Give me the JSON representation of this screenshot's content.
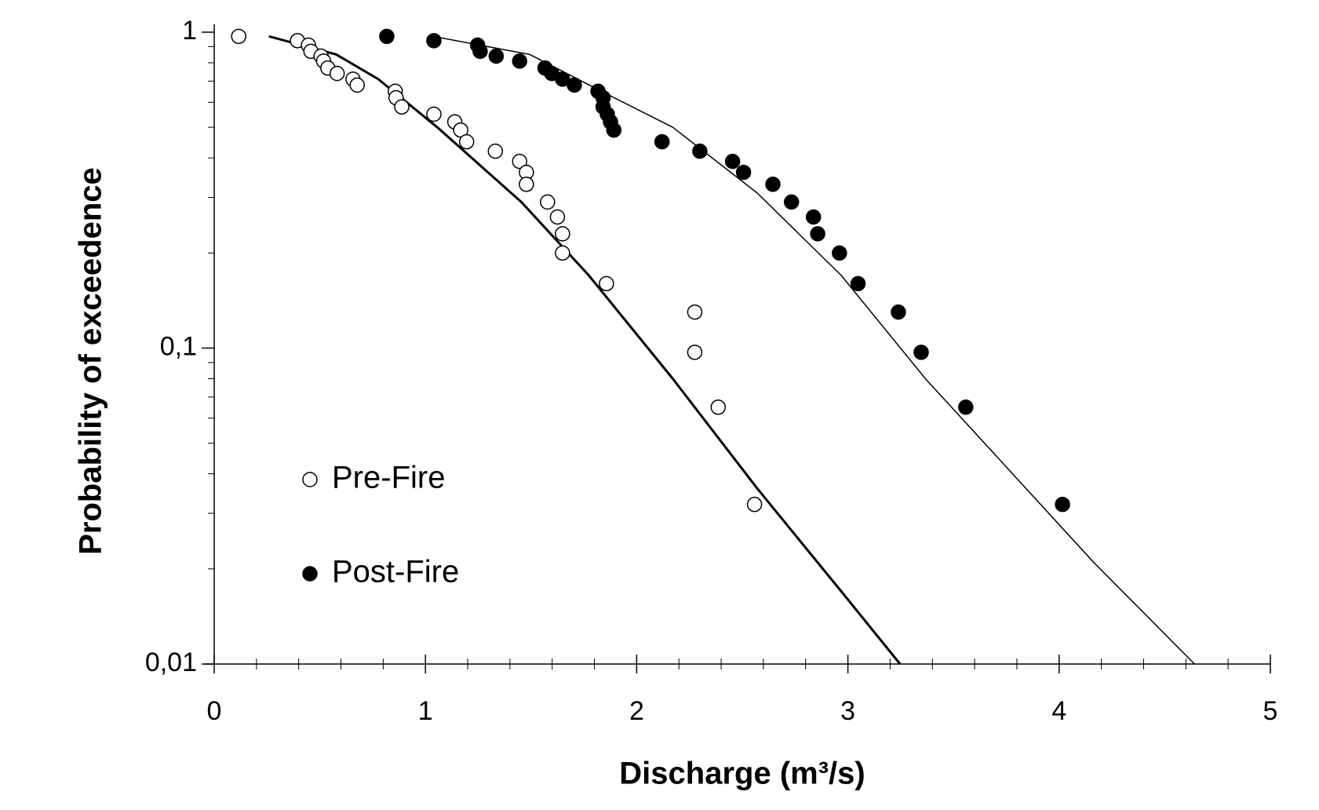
{
  "chart_data": {
    "type": "scatter",
    "x_label": "Discharge (m³/s)",
    "y_label": "Probability of exceedence",
    "xlim": [
      0,
      5
    ],
    "xticks": [
      0,
      1,
      2,
      3,
      4,
      5
    ],
    "xminorticks": [
      0.2,
      0.4,
      0.6,
      0.8,
      1.2,
      1.4,
      1.6,
      1.8,
      2.2,
      2.4,
      2.6,
      2.8,
      3.2,
      3.4,
      3.6,
      3.8,
      4.2,
      4.4,
      4.6,
      4.8
    ],
    "ylim": [
      0.01,
      1
    ],
    "ylog": true,
    "yticks": [
      {
        "value": 0.01,
        "label": "0,01"
      },
      {
        "value": 0.1,
        "label": "0,1"
      },
      1
    ],
    "yminorticks": [
      0.02,
      0.03,
      0.04,
      0.05,
      0.06,
      0.07,
      0.08,
      0.09,
      0.2,
      0.3,
      0.4,
      0.5,
      0.6,
      0.7,
      0.8,
      0.9
    ],
    "series": [
      {
        "name": "Pre-Fire",
        "color": "#000000",
        "marker": "open",
        "x": [
          0.116,
          0.394,
          0.446,
          0.458,
          0.506,
          0.518,
          0.538,
          0.582,
          0.657,
          0.677,
          0.857,
          0.861,
          0.888,
          1.04,
          1.139,
          1.167,
          1.195,
          1.331,
          1.446,
          1.478,
          1.478,
          1.578,
          1.625,
          1.649,
          1.649,
          1.857,
          2.275,
          2.275,
          2.386,
          2.558
        ],
        "values": [
          0.97,
          0.94,
          0.91,
          0.87,
          0.84,
          0.81,
          0.77,
          0.74,
          0.71,
          0.68,
          0.65,
          0.62,
          0.58,
          0.55,
          0.52,
          0.49,
          0.45,
          0.42,
          0.39,
          0.36,
          0.33,
          0.29,
          0.26,
          0.23,
          0.2,
          0.16,
          0.13,
          0.097,
          0.065,
          0.032
        ]
      },
      {
        "name": "Post-Fire",
        "color": "#000000",
        "marker": "filled",
        "x": [
          0.817,
          1.04,
          1.247,
          1.259,
          1.335,
          1.446,
          1.566,
          1.598,
          1.649,
          1.705,
          1.817,
          1.841,
          1.841,
          1.861,
          1.876,
          1.892,
          2.12,
          2.299,
          2.454,
          2.506,
          2.645,
          2.733,
          2.837,
          2.857,
          2.96,
          3.048,
          3.239,
          3.347,
          3.558,
          4.016
        ],
        "values": [
          0.97,
          0.94,
          0.91,
          0.87,
          0.84,
          0.81,
          0.77,
          0.74,
          0.71,
          0.68,
          0.65,
          0.62,
          0.58,
          0.55,
          0.52,
          0.49,
          0.45,
          0.42,
          0.39,
          0.36,
          0.33,
          0.29,
          0.26,
          0.23,
          0.2,
          0.16,
          0.13,
          0.097,
          0.065,
          0.032
        ]
      }
    ],
    "fits": [
      {
        "color": "#000000",
        "width": 3,
        "x": [
          0.259,
          0.578,
          0.777,
          1.056,
          1.454,
          1.773,
          2.171,
          2.57,
          2.968,
          3.247
        ],
        "values": [
          0.97,
          0.85,
          0.71,
          0.5,
          0.29,
          0.17,
          0.08,
          0.036,
          0.017,
          0.01
        ]
      },
      {
        "color": "#000000",
        "width": 1.5,
        "x": [
          1.036,
          1.494,
          1.853,
          2.171,
          2.57,
          2.968,
          3.367,
          3.765,
          4.163,
          4.641
        ],
        "values": [
          0.97,
          0.85,
          0.64,
          0.5,
          0.31,
          0.17,
          0.08,
          0.041,
          0.021,
          0.01
        ]
      }
    ]
  }
}
